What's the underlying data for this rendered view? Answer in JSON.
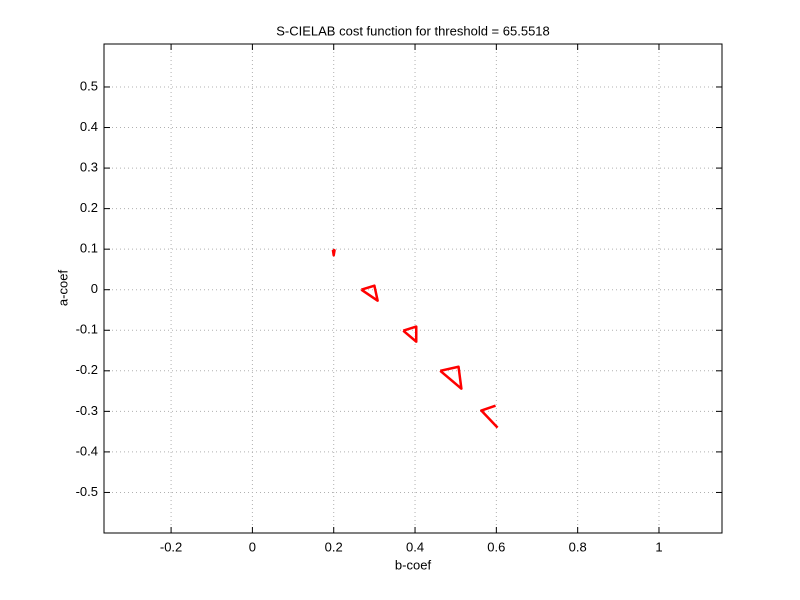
{
  "chart_data": {
    "type": "line",
    "title": "S-CIELAB cost function for threshold = 65.5518",
    "xlabel": "b-coef",
    "ylabel": "a-coef",
    "xlim": [
      -0.365,
      1.155
    ],
    "ylim": [
      -0.6,
      0.606
    ],
    "xticks": [
      -0.2,
      0,
      0.2,
      0.4,
      0.6,
      0.8,
      1
    ],
    "yticks": [
      -0.5,
      -0.4,
      -0.3,
      -0.2,
      -0.1,
      0,
      0.1,
      0.2,
      0.3,
      0.4,
      0.5
    ],
    "grid": true,
    "series": [
      {
        "color": "#ff0000",
        "x": [
          0.198,
          0.2,
          0.202,
          0.198,
          null,
          0.268,
          0.3,
          0.308,
          0.268,
          null,
          0.371,
          0.403,
          0.403,
          0.371,
          null,
          0.462,
          0.507,
          0.514,
          0.462,
          null,
          0.598,
          0.563,
          0.603
        ],
        "values": [
          0.098,
          0.085,
          0.097,
          0.098,
          null,
          0,
          0.01,
          -0.027,
          0,
          null,
          -0.101,
          -0.091,
          -0.128,
          -0.101,
          null,
          -0.2,
          -0.19,
          -0.244,
          -0.2,
          null,
          -0.286,
          -0.298,
          -0.34
        ]
      }
    ]
  }
}
